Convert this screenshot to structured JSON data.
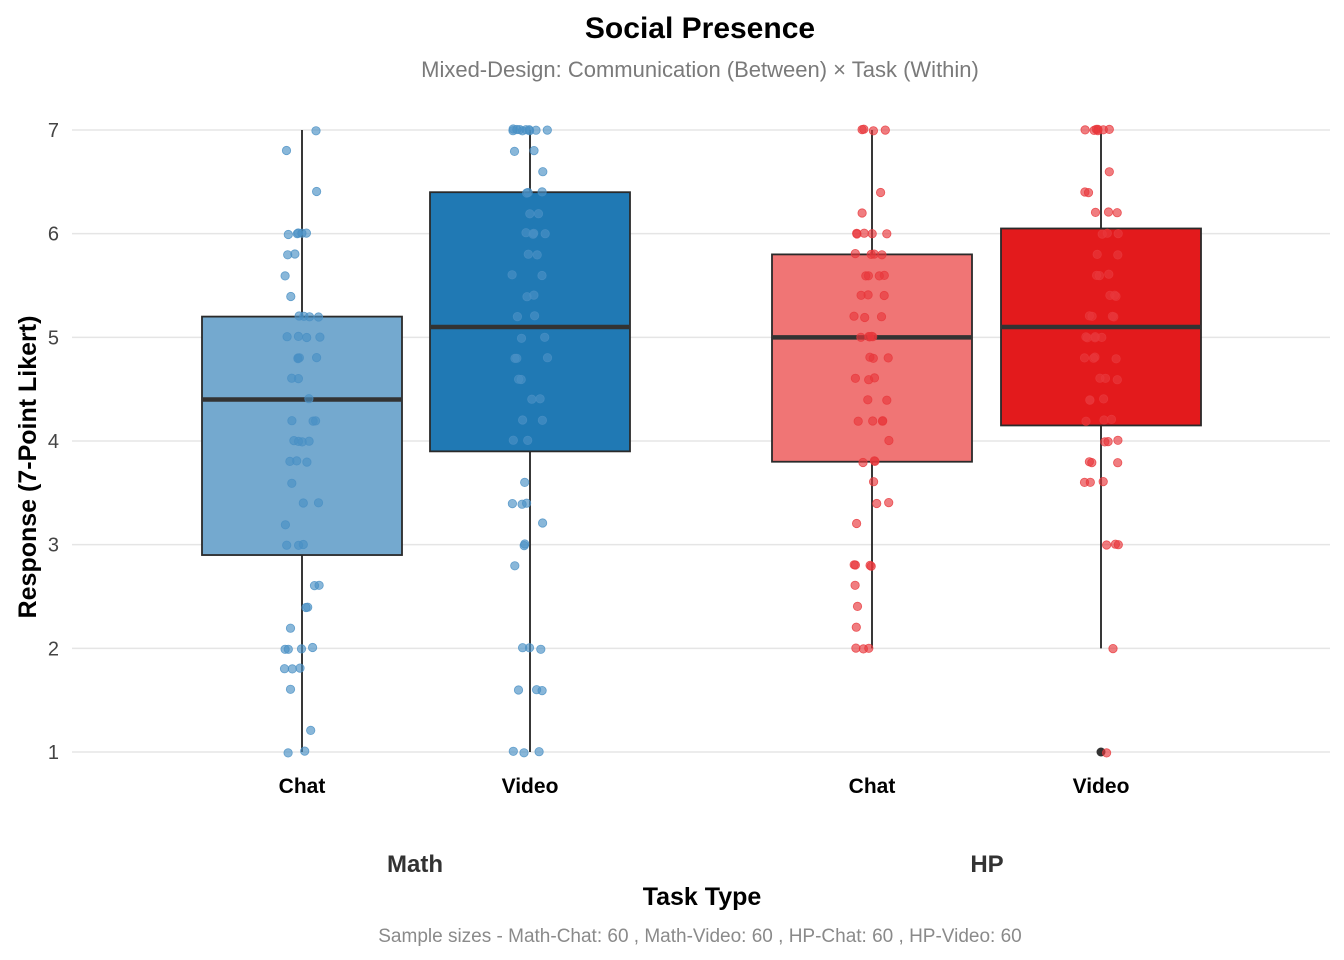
{
  "chart_data": {
    "type": "boxplot",
    "title": "Social Presence",
    "subtitle": "Mixed-Design: Communication (Between) × Task (Within)",
    "xlabel": "Task Type",
    "ylabel": "Response (7-Point Likert)",
    "ylim": [
      1,
      7
    ],
    "yticks": [
      "1",
      "2",
      "3",
      "4",
      "5",
      "6",
      "7"
    ],
    "grid": true,
    "caption": "Sample sizes - Math-Chat: 60 , Math-Video: 60 , HP-Chat: 60 , HP-Video: 60",
    "groups": [
      {
        "label": "Math",
        "boxes": [
          {
            "category": "Chat",
            "color": "#74a9cf",
            "points_color": "#4a90c4",
            "min": 1.0,
            "q1": 2.9,
            "median": 4.4,
            "q3": 5.2,
            "max": 7.0,
            "outliers": [],
            "points": [
              7.0,
              6.8,
              6.4,
              6.0,
              6.0,
              6.0,
              6.0,
              6.0,
              5.8,
              5.8,
              5.6,
              5.4,
              5.2,
              5.2,
              5.2,
              5.0,
              5.0,
              5.0,
              5.0,
              4.8,
              4.8,
              4.8,
              4.6,
              4.6,
              4.4,
              4.2,
              4.2,
              4.2,
              4.0,
              4.0,
              4.0,
              3.8,
              3.8,
              3.6,
              3.4,
              3.4,
              3.2,
              3.0,
              3.0,
              3.0,
              2.6,
              2.6,
              2.4,
              2.4,
              2.2,
              2.0,
              2.0,
              2.0,
              2.0,
              1.8,
              1.8,
              1.8,
              1.6,
              1.2,
              1.0,
              1.0,
              3.8,
              4.8,
              5.2,
              4.0
            ]
          },
          {
            "category": "Video",
            "color": "#2079b4",
            "points_color": "#4a90c4",
            "min": 1.0,
            "q1": 3.9,
            "median": 5.1,
            "q3": 6.4,
            "max": 7.0,
            "outliers": [],
            "points": [
              7.0,
              7.0,
              7.0,
              7.0,
              7.0,
              7.0,
              7.0,
              7.0,
              7.0,
              7.0,
              6.8,
              6.8,
              6.6,
              6.4,
              6.4,
              6.4,
              6.2,
              6.2,
              6.0,
              6.0,
              6.0,
              6.0,
              5.8,
              5.8,
              5.6,
              5.6,
              5.4,
              5.4,
              5.2,
              5.2,
              5.0,
              5.0,
              4.8,
              4.8,
              4.6,
              4.6,
              4.4,
              4.4,
              4.2,
              4.2,
              4.0,
              4.0,
              3.6,
              3.4,
              3.4,
              3.4,
              3.2,
              3.0,
              3.0,
              2.8,
              2.0,
              2.0,
              2.0,
              1.6,
              1.6,
              1.6,
              1.0,
              1.0,
              1.0,
              4.8
            ]
          }
        ]
      },
      {
        "label": "HP",
        "boxes": [
          {
            "category": "Chat",
            "color": "#f07575",
            "points_color": "#e8383c",
            "min": 2.0,
            "q1": 3.8,
            "median": 5.0,
            "q3": 5.8,
            "max": 7.0,
            "outliers": [],
            "points": [
              7.0,
              7.0,
              7.0,
              7.0,
              6.4,
              6.2,
              6.0,
              6.0,
              6.0,
              6.0,
              6.0,
              5.8,
              5.8,
              5.8,
              5.8,
              5.6,
              5.6,
              5.6,
              5.4,
              5.4,
              5.4,
              5.2,
              5.2,
              5.2,
              5.0,
              5.0,
              5.0,
              5.0,
              5.0,
              4.8,
              4.8,
              4.8,
              4.6,
              4.6,
              4.6,
              4.4,
              4.4,
              4.2,
              4.2,
              4.2,
              4.2,
              4.0,
              3.8,
              3.8,
              3.8,
              3.6,
              3.4,
              3.4,
              3.2,
              2.8,
              2.8,
              2.8,
              2.8,
              2.6,
              2.4,
              2.2,
              2.0,
              2.0,
              2.0,
              5.6
            ]
          },
          {
            "category": "Video",
            "color": "#e31a1c",
            "points_color": "#e8383c",
            "min": 2.0,
            "q1": 4.15,
            "median": 5.1,
            "q3": 6.05,
            "max": 7.0,
            "outliers": [
              1.0
            ],
            "points": [
              7.0,
              7.0,
              7.0,
              7.0,
              7.0,
              7.0,
              7.0,
              6.6,
              6.4,
              6.4,
              6.2,
              6.2,
              6.2,
              6.0,
              6.0,
              5.8,
              5.8,
              5.6,
              5.6,
              5.4,
              5.4,
              5.2,
              5.2,
              5.2,
              5.0,
              5.0,
              5.0,
              4.8,
              4.8,
              4.8,
              4.6,
              4.6,
              4.4,
              4.4,
              4.4,
              4.2,
              4.2,
              4.2,
              4.0,
              4.0,
              4.0,
              3.8,
              3.8,
              3.8,
              3.6,
              3.6,
              3.6,
              3.0,
              3.0,
              3.0,
              2.0,
              1.0,
              5.0,
              5.6,
              6.0,
              4.8,
              5.2,
              4.6,
              5.4,
              5.0
            ]
          }
        ]
      }
    ]
  }
}
